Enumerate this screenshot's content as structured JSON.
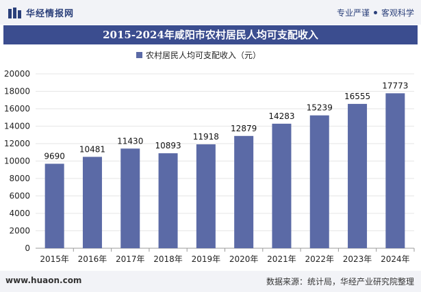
{
  "header": {
    "brand": "华经情报网",
    "slogan_left": "专业严谨",
    "slogan_right": "客观科学"
  },
  "footer": {
    "website": "www.huaon.com",
    "source": "数据来源：统计局，华经产业研究院整理"
  },
  "colors": {
    "bar": "#5b6aa6",
    "title_bg": "#3b4d8f",
    "brand": "#2a3f7a"
  },
  "chart_data": {
    "type": "bar",
    "title": "2015-2024年咸阳市农村居民人均可支配收入",
    "legend": "农村居民人均可支配收入（元）",
    "categories": [
      "2015年",
      "2016年",
      "2017年",
      "2018年",
      "2019年",
      "2020年",
      "2021年",
      "2022年",
      "2023年",
      "2024年"
    ],
    "values": [
      9690,
      10481,
      11430,
      10893,
      11918,
      12879,
      14283,
      15239,
      16555,
      17773
    ],
    "y_ticks": [
      "0",
      "2000",
      "4000",
      "6000",
      "8000",
      "10000",
      "12000",
      "14000",
      "16000",
      "18000",
      "20000"
    ],
    "ylim": [
      0,
      20000
    ],
    "xlabel": "",
    "ylabel": ""
  }
}
